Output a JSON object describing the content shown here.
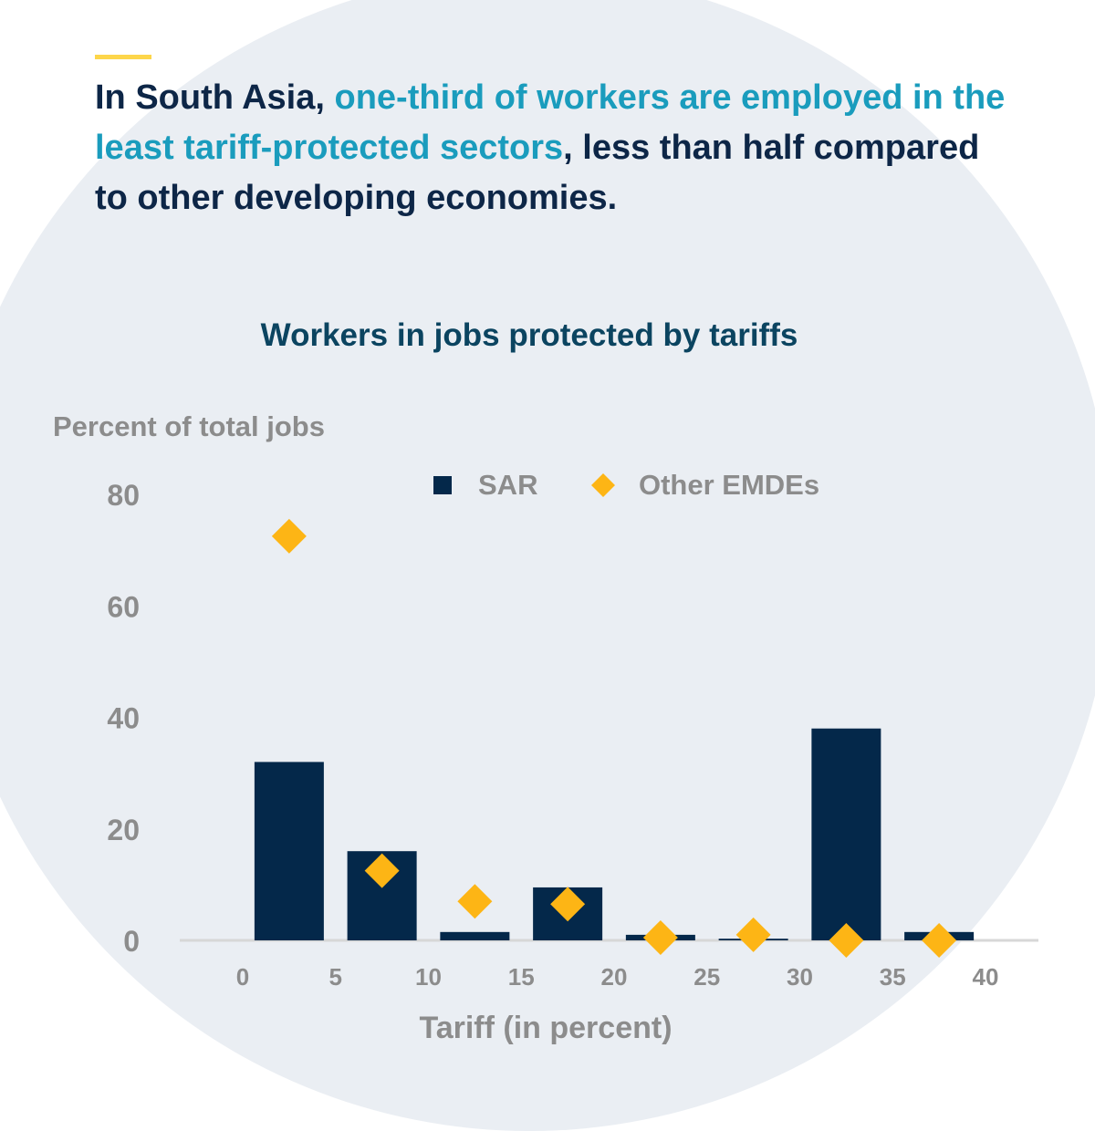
{
  "headline": {
    "part1": "In South Asia, ",
    "highlight": "one-third of workers are employed in the least tariff-protected sectors",
    "part2": ", less than half compared to other developing economies."
  },
  "colors": {
    "background_circle": "#eaeef3",
    "accent_bar": "#fdd64a",
    "headline_text": "#0d2647",
    "headline_highlight": "#1a9cbd",
    "chart_title": "#0b4460",
    "sar_bars": "#04284a",
    "other_emdes_markers": "#fdb515",
    "axis_text": "#8c8c8c"
  },
  "chart_data": {
    "type": "bar",
    "title": "Workers in jobs protected by tariffs",
    "ylabel": "Percent of total jobs",
    "xlabel": "Tariff (in percent)",
    "ylim": [
      0,
      80
    ],
    "yticks": [
      0,
      20,
      40,
      60,
      80
    ],
    "xlim": [
      0,
      40
    ],
    "xticks": [
      0,
      5,
      10,
      15,
      20,
      25,
      30,
      35,
      40
    ],
    "bin_centers": [
      2.5,
      7.5,
      12.5,
      17.5,
      22.5,
      27.5,
      32.5,
      37.5
    ],
    "grid": false,
    "legend_position": "top",
    "series": [
      {
        "name": "SAR",
        "type": "bar",
        "values": [
          32,
          16,
          1.5,
          9.5,
          1,
          0.3,
          38,
          1.5
        ]
      },
      {
        "name": "Other EMDEs",
        "type": "marker",
        "values": [
          72.5,
          12.5,
          7,
          6.5,
          0.5,
          1,
          0,
          0
        ]
      }
    ]
  }
}
